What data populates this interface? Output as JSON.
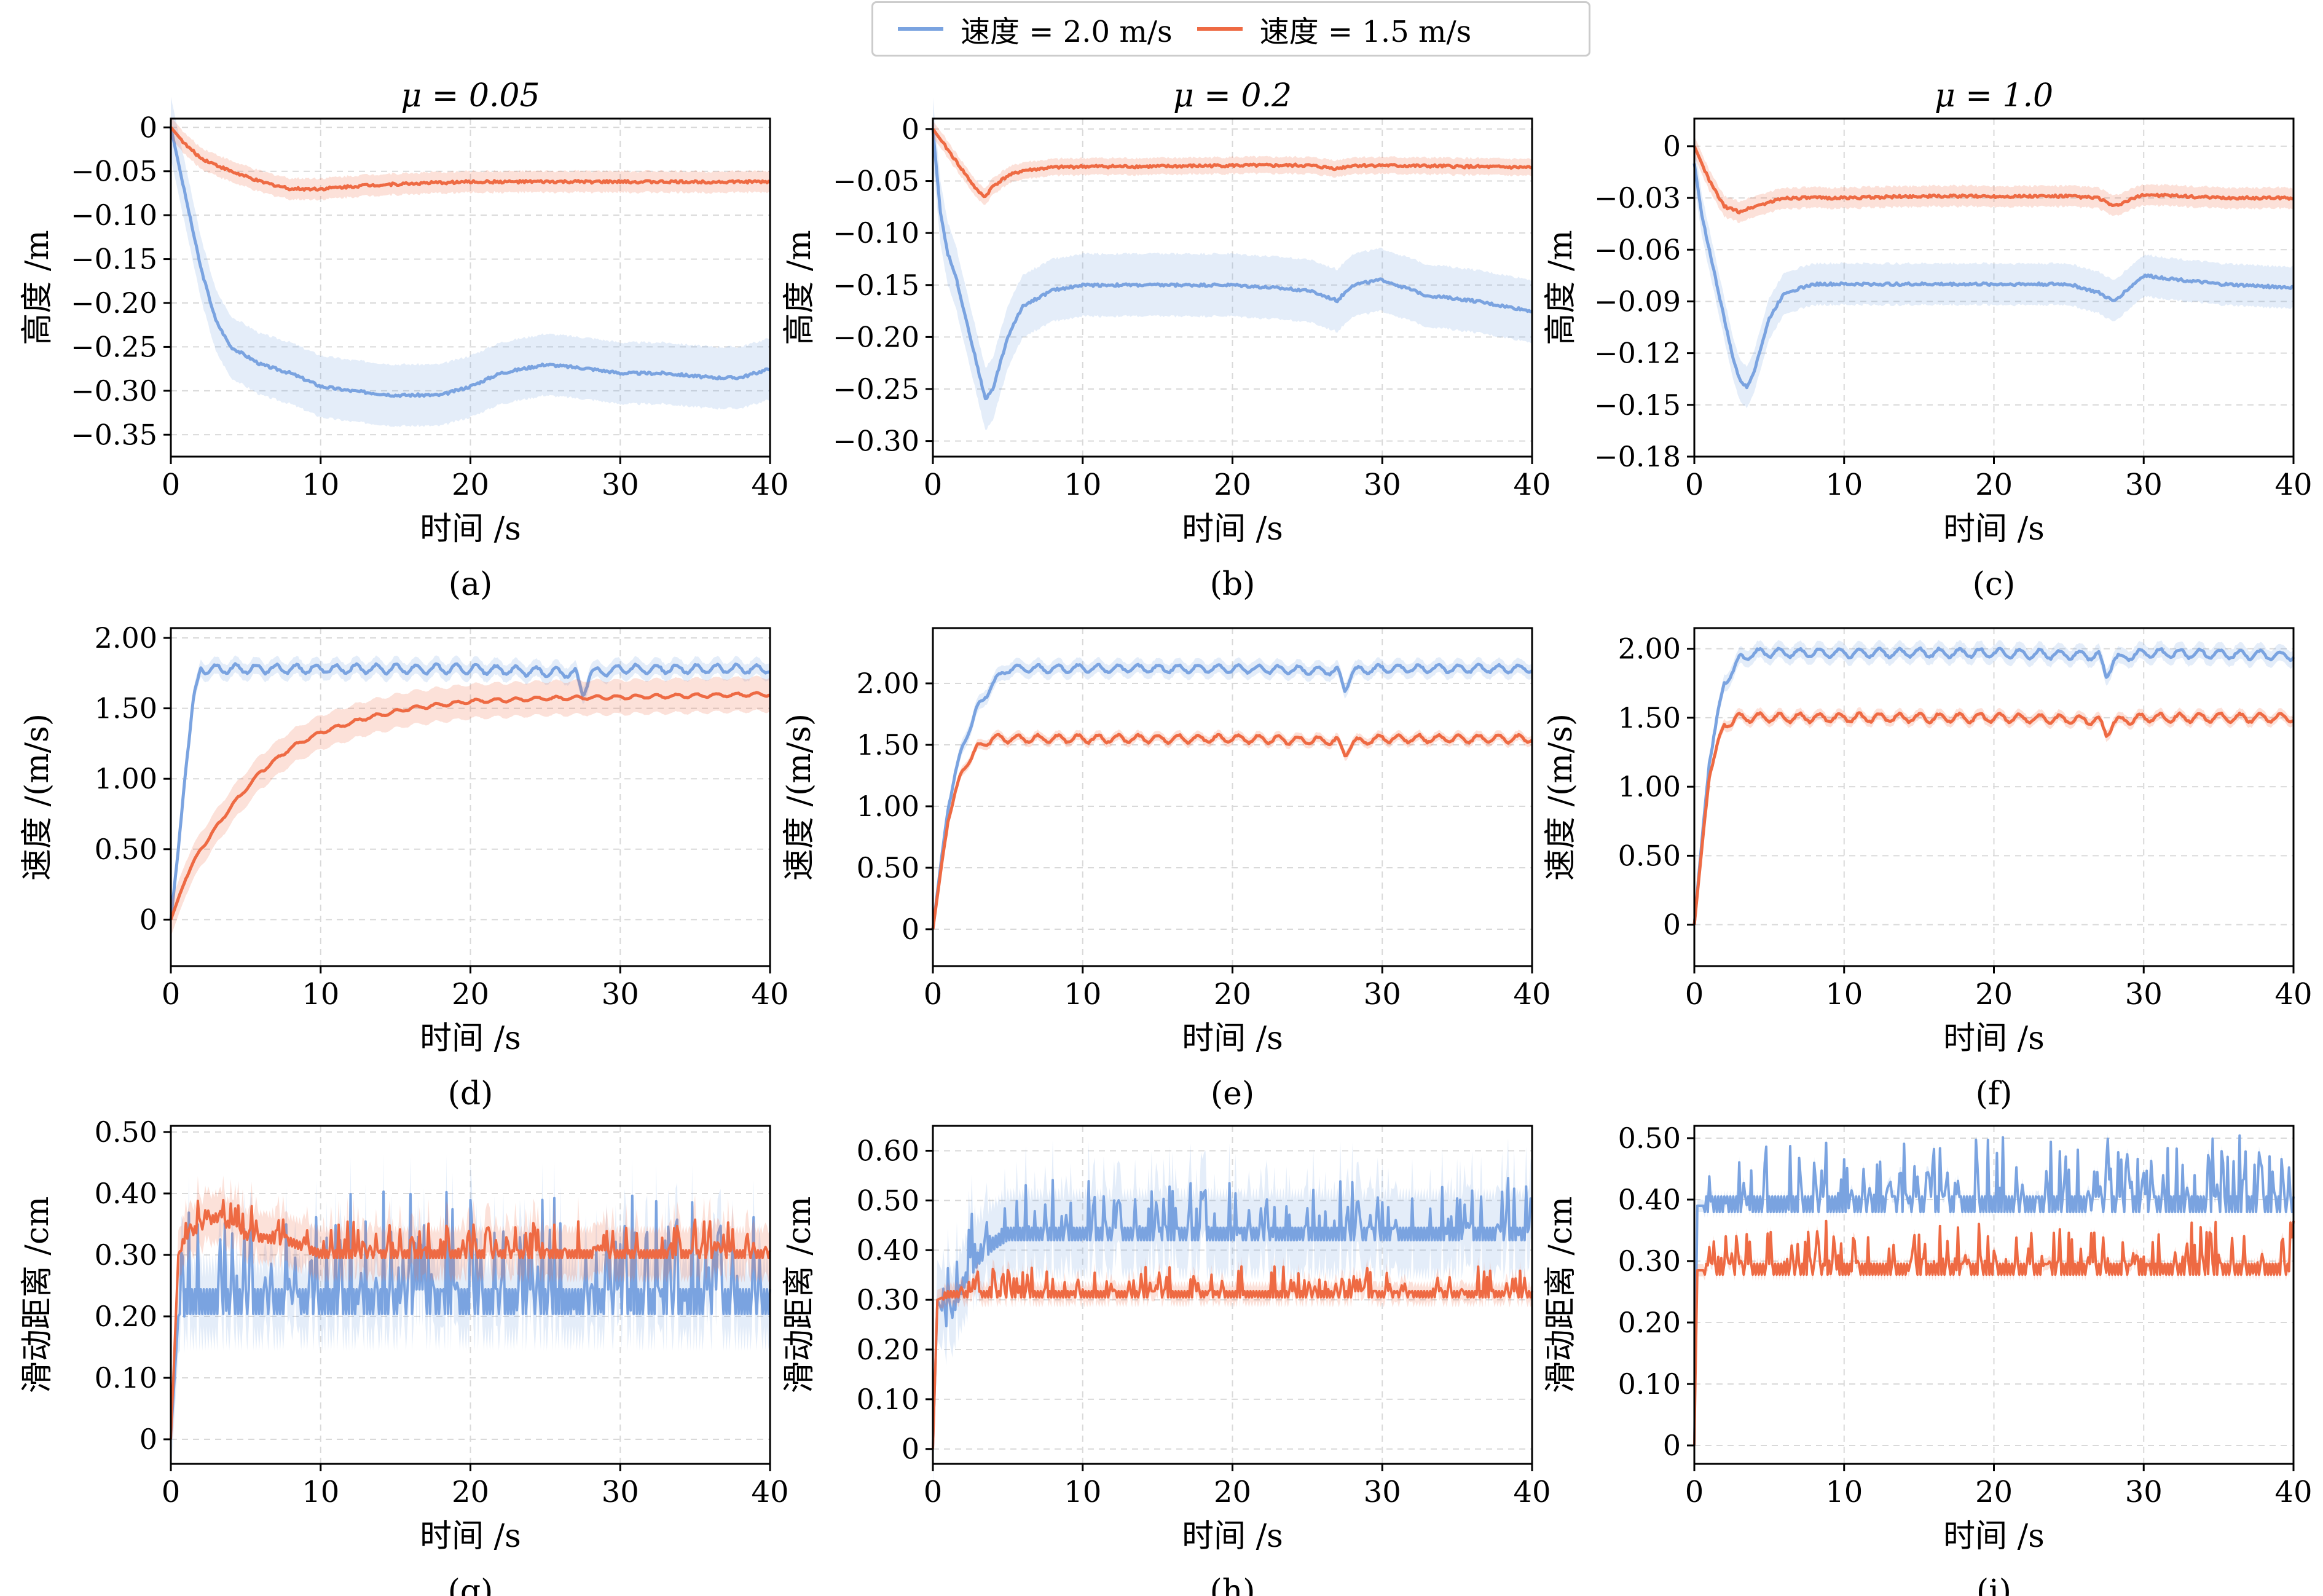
{
  "legend": [
    {
      "label": "速度 = 2.0 m/s",
      "color": "#7aa3e0"
    },
    {
      "label": "速度 = 1.5 m/s",
      "color": "#ee6a43"
    }
  ],
  "colors": {
    "blue": "#7aa3e0",
    "blue_band": "#dce7f8",
    "orange": "#ee6a43",
    "orange_band": "#fbd6c8",
    "grid": "#d9d9d9"
  },
  "chart_data": [
    {
      "id": "a",
      "type": "line",
      "title": "μ = 0.05",
      "caption": "(a)",
      "xlabel": "时间 /s",
      "ylabel": "高度 /m",
      "xlim": [
        0,
        40
      ],
      "ylim": [
        -0.375,
        0.01
      ],
      "xticks": [
        0,
        10,
        20,
        30,
        40
      ],
      "xtick_labels": [
        "0",
        "10",
        "20",
        "30",
        "40"
      ],
      "yticks": [
        0,
        -0.05,
        -0.1,
        -0.15,
        -0.2,
        -0.25,
        -0.3,
        -0.35
      ],
      "ytick_labels": [
        "0",
        "−0.05",
        "−0.10",
        "−0.15",
        "−0.20",
        "−0.25",
        "−0.30",
        "−0.35"
      ],
      "series": [
        {
          "name": "速度 = 2.0 m/s",
          "color": "#7aa3e0",
          "x": [
            0,
            1,
            2,
            3,
            4,
            6,
            8,
            10,
            12,
            15,
            18,
            20,
            22,
            25,
            28,
            30,
            33,
            36,
            38,
            40
          ],
          "y": [
            0,
            -0.08,
            -0.16,
            -0.22,
            -0.25,
            -0.27,
            -0.28,
            -0.295,
            -0.3,
            -0.305,
            -0.305,
            -0.295,
            -0.28,
            -0.27,
            -0.275,
            -0.28,
            -0.28,
            -0.285,
            -0.285,
            -0.275
          ],
          "band": 0.035
        },
        {
          "name": "速度 = 1.5 m/s",
          "color": "#ee6a43",
          "x": [
            0,
            1,
            2,
            4,
            6,
            8,
            10,
            13,
            16,
            20,
            25,
            30,
            35,
            40
          ],
          "y": [
            0,
            -0.02,
            -0.035,
            -0.05,
            -0.062,
            -0.07,
            -0.07,
            -0.066,
            -0.064,
            -0.062,
            -0.062,
            -0.062,
            -0.062,
            -0.062
          ],
          "band": 0.012
        }
      ]
    },
    {
      "id": "b",
      "type": "line",
      "title": "μ = 0.2",
      "caption": "(b)",
      "xlabel": "时间 /s",
      "ylabel": "高度 /m",
      "xlim": [
        0,
        40
      ],
      "ylim": [
        -0.315,
        0.01
      ],
      "xticks": [
        0,
        10,
        20,
        30,
        40
      ],
      "xtick_labels": [
        "0",
        "10",
        "20",
        "30",
        "40"
      ],
      "yticks": [
        0,
        -0.05,
        -0.1,
        -0.15,
        -0.2,
        -0.25,
        -0.3
      ],
      "ytick_labels": [
        "0",
        "−0.05",
        "−0.10",
        "−0.15",
        "−0.20",
        "−0.25",
        "−0.30"
      ],
      "series": [
        {
          "name": "速度 = 2.0 m/s",
          "color": "#7aa3e0",
          "x": [
            0,
            0.5,
            1,
            1.5,
            2,
            2.5,
            3,
            3.5,
            4,
            5,
            6,
            8,
            10,
            15,
            20,
            25,
            27,
            28,
            30,
            33,
            36,
            40
          ],
          "y": [
            0,
            -0.08,
            -0.12,
            -0.14,
            -0.17,
            -0.2,
            -0.23,
            -0.26,
            -0.25,
            -0.2,
            -0.17,
            -0.155,
            -0.15,
            -0.15,
            -0.15,
            -0.155,
            -0.165,
            -0.15,
            -0.145,
            -0.16,
            -0.165,
            -0.175
          ],
          "band": 0.03
        },
        {
          "name": "速度 = 1.5 m/s",
          "color": "#ee6a43",
          "x": [
            0,
            1,
            2,
            3,
            3.5,
            4,
            5,
            6,
            8,
            10,
            15,
            20,
            25,
            27,
            28,
            30,
            35,
            40
          ],
          "y": [
            0,
            -0.02,
            -0.04,
            -0.06,
            -0.065,
            -0.055,
            -0.045,
            -0.04,
            -0.037,
            -0.036,
            -0.036,
            -0.035,
            -0.035,
            -0.038,
            -0.035,
            -0.035,
            -0.036,
            -0.037
          ],
          "band": 0.008
        }
      ]
    },
    {
      "id": "c",
      "type": "line",
      "title": "μ = 1.0",
      "caption": "(c)",
      "xlabel": "时间 /s",
      "ylabel": "高度 /m",
      "xlim": [
        0,
        40
      ],
      "ylim": [
        -0.18,
        0.016
      ],
      "xticks": [
        0,
        10,
        20,
        30,
        40
      ],
      "xtick_labels": [
        "0",
        "10",
        "20",
        "30",
        "40"
      ],
      "yticks": [
        0,
        -0.03,
        -0.06,
        -0.09,
        -0.12,
        -0.15,
        -0.18
      ],
      "ytick_labels": [
        "0",
        "−0.03",
        "−0.06",
        "−0.09",
        "−0.12",
        "−0.15",
        "−0.18"
      ],
      "series": [
        {
          "name": "速度 = 2.0 m/s",
          "color": "#7aa3e0",
          "x": [
            0,
            0.5,
            1,
            1.5,
            2,
            2.5,
            3,
            3.5,
            4,
            5,
            6,
            8,
            10,
            15,
            20,
            25,
            27,
            28,
            30,
            35,
            40
          ],
          "y": [
            -0.01,
            -0.04,
            -0.06,
            -0.08,
            -0.1,
            -0.12,
            -0.135,
            -0.14,
            -0.13,
            -0.1,
            -0.085,
            -0.08,
            -0.08,
            -0.08,
            -0.08,
            -0.08,
            -0.085,
            -0.09,
            -0.075,
            -0.08,
            -0.082
          ],
          "band": 0.012
        },
        {
          "name": "速度 = 1.5 m/s",
          "color": "#ee6a43",
          "x": [
            0,
            1,
            2,
            3,
            4,
            6,
            8,
            10,
            15,
            20,
            25,
            27,
            28,
            30,
            35,
            40
          ],
          "y": [
            0,
            -0.02,
            -0.035,
            -0.038,
            -0.035,
            -0.03,
            -0.03,
            -0.03,
            -0.029,
            -0.029,
            -0.029,
            -0.03,
            -0.035,
            -0.028,
            -0.03,
            -0.03
          ],
          "band": 0.006
        }
      ]
    },
    {
      "id": "d",
      "type": "line",
      "caption": "(d)",
      "xlabel": "时间 /s",
      "ylabel": "速度 /(m/s)",
      "xlim": [
        0,
        40
      ],
      "ylim": [
        -0.33,
        2.07
      ],
      "xticks": [
        0,
        10,
        20,
        30,
        40
      ],
      "xtick_labels": [
        "0",
        "10",
        "20",
        "30",
        "40"
      ],
      "yticks": [
        0,
        0.5,
        1.0,
        1.5,
        2.0
      ],
      "ytick_labels": [
        "0",
        "0.50",
        "1.00",
        "1.50",
        "2.00"
      ],
      "series": [
        {
          "name": "速度 = 2.0 m/s",
          "color": "#7aa3e0",
          "x": [
            0,
            0.5,
            1,
            1.5,
            2,
            3,
            10,
            20,
            27,
            27.5,
            28,
            30,
            40
          ],
          "y": [
            0,
            0.5,
            1.1,
            1.55,
            1.78,
            1.78,
            1.78,
            1.78,
            1.75,
            1.6,
            1.75,
            1.78,
            1.78
          ],
          "band": 0.06,
          "osc": 0.05
        },
        {
          "name": "速度 = 1.5 m/s",
          "color": "#ee6a43",
          "x": [
            0,
            1,
            2,
            3,
            4,
            6,
            8,
            10,
            13,
            16,
            20,
            25,
            30,
            35,
            40
          ],
          "y": [
            0,
            0.3,
            0.5,
            0.65,
            0.8,
            1.05,
            1.22,
            1.33,
            1.43,
            1.5,
            1.55,
            1.57,
            1.58,
            1.59,
            1.6
          ],
          "band": 0.12,
          "osc": 0.02
        }
      ]
    },
    {
      "id": "e",
      "type": "line",
      "caption": "(e)",
      "xlabel": "时间 /s",
      "ylabel": "速度 /(m/s)",
      "xlim": [
        0,
        40
      ],
      "ylim": [
        -0.3,
        2.45
      ],
      "xticks": [
        0,
        10,
        20,
        30,
        40
      ],
      "xtick_labels": [
        "0",
        "10",
        "20",
        "30",
        "40"
      ],
      "yticks": [
        0,
        0.5,
        1.0,
        1.5,
        2.0
      ],
      "ytick_labels": [
        "0",
        "0.50",
        "1.00",
        "1.50",
        "2.00"
      ],
      "series": [
        {
          "name": "速度 = 2.0 m/s",
          "color": "#7aa3e0",
          "x": [
            0,
            1,
            2,
            3,
            4,
            5,
            10,
            20,
            27,
            27.5,
            28,
            30,
            40
          ],
          "y": [
            0,
            1.0,
            1.5,
            1.8,
            2.0,
            2.12,
            2.12,
            2.12,
            2.1,
            1.95,
            2.1,
            2.12,
            2.12
          ],
          "band": 0.06,
          "osc": 0.05
        },
        {
          "name": "速度 = 1.5 m/s",
          "color": "#ee6a43",
          "x": [
            0,
            1,
            2,
            3,
            4,
            10,
            20,
            27,
            27.5,
            28,
            30,
            40
          ],
          "y": [
            0,
            0.9,
            1.3,
            1.48,
            1.55,
            1.55,
            1.55,
            1.53,
            1.42,
            1.52,
            1.55,
            1.55
          ],
          "band": 0.04,
          "osc": 0.05
        }
      ]
    },
    {
      "id": "f",
      "type": "line",
      "caption": "(f)",
      "xlabel": "时间 /s",
      "ylabel": "速度 /(m/s)",
      "xlim": [
        0,
        40
      ],
      "ylim": [
        -0.3,
        2.15
      ],
      "xticks": [
        0,
        10,
        20,
        30,
        40
      ],
      "xtick_labels": [
        "0",
        "10",
        "20",
        "30",
        "40"
      ],
      "yticks": [
        0,
        0.5,
        1.0,
        1.5,
        2.0
      ],
      "ytick_labels": [
        "0",
        "0.50",
        "1.00",
        "1.50",
        "2.00"
      ],
      "series": [
        {
          "name": "速度 = 2.0 m/s",
          "color": "#7aa3e0",
          "x": [
            0,
            1,
            2,
            3,
            4,
            10,
            20,
            27,
            27.5,
            28,
            30,
            40
          ],
          "y": [
            0,
            1.2,
            1.75,
            1.92,
            1.97,
            1.97,
            1.97,
            1.95,
            1.8,
            1.92,
            1.97,
            1.95
          ],
          "band": 0.06,
          "osc": 0.05
        },
        {
          "name": "速度 = 1.5 m/s",
          "color": "#ee6a43",
          "x": [
            0,
            1,
            2,
            3,
            10,
            20,
            27,
            27.5,
            28,
            30,
            40
          ],
          "y": [
            0,
            1.1,
            1.45,
            1.5,
            1.5,
            1.5,
            1.48,
            1.38,
            1.47,
            1.5,
            1.5
          ],
          "band": 0.04,
          "osc": 0.05
        }
      ]
    },
    {
      "id": "g",
      "type": "line",
      "caption": "(g)",
      "xlabel": "时间 /s",
      "ylabel": "滑动距离 /cm",
      "xlim": [
        0,
        40
      ],
      "ylim": [
        -0.04,
        0.51
      ],
      "xticks": [
        0,
        10,
        20,
        30,
        40
      ],
      "xtick_labels": [
        "0",
        "10",
        "20",
        "30",
        "40"
      ],
      "yticks": [
        0,
        0.1,
        0.2,
        0.3,
        0.4,
        0.5
      ],
      "ytick_labels": [
        "0",
        "0.10",
        "0.20",
        "0.30",
        "0.40",
        "0.50"
      ],
      "series": [
        {
          "name": "速度 = 2.0 m/s",
          "color": "#7aa3e0",
          "x": [
            0,
            0.5,
            1,
            40
          ],
          "y": [
            0,
            0.2,
            0.22,
            0.22
          ],
          "band": 0.06,
          "osc": 0.08
        },
        {
          "name": "速度 = 1.5 m/s",
          "color": "#ee6a43",
          "x": [
            0,
            0.5,
            1,
            3,
            5,
            8,
            10,
            15,
            40
          ],
          "y": [
            0,
            0.3,
            0.33,
            0.36,
            0.33,
            0.32,
            0.3,
            0.3,
            0.3
          ],
          "band": 0.04,
          "osc": 0.025
        }
      ]
    },
    {
      "id": "h",
      "type": "line",
      "caption": "(h)",
      "xlabel": "时间 /s",
      "ylabel": "滑动距离 /cm",
      "xlim": [
        0,
        40
      ],
      "ylim": [
        -0.03,
        0.65
      ],
      "xticks": [
        0,
        10,
        20,
        30,
        40
      ],
      "xtick_labels": [
        "0",
        "10",
        "20",
        "30",
        "40"
      ],
      "yticks": [
        0,
        0.1,
        0.2,
        0.3,
        0.4,
        0.5,
        0.6
      ],
      "ytick_labels": [
        "0",
        "0.10",
        "0.20",
        "0.30",
        "0.40",
        "0.50",
        "0.60"
      ],
      "series": [
        {
          "name": "速度 = 2.0 m/s",
          "color": "#7aa3e0",
          "x": [
            0,
            0.3,
            1,
            2,
            3,
            4,
            5,
            40
          ],
          "y": [
            0,
            0.3,
            0.25,
            0.33,
            0.38,
            0.41,
            0.43,
            0.43
          ],
          "band": 0.08,
          "osc": 0.05
        },
        {
          "name": "速度 = 1.5 m/s",
          "color": "#ee6a43",
          "x": [
            0,
            0.3,
            1,
            40
          ],
          "y": [
            0,
            0.3,
            0.31,
            0.31
          ],
          "band": 0.02,
          "osc": 0.025
        }
      ]
    },
    {
      "id": "i",
      "type": "line",
      "caption": "(i)",
      "xlabel": "时间 /s",
      "ylabel": "滑动距离 /cm",
      "xlim": [
        0,
        40
      ],
      "ylim": [
        -0.03,
        0.52
      ],
      "xticks": [
        0,
        10,
        20,
        30,
        40
      ],
      "xtick_labels": [
        "0",
        "10",
        "20",
        "30",
        "40"
      ],
      "yticks": [
        0,
        0.1,
        0.2,
        0.3,
        0.4,
        0.5
      ],
      "ytick_labels": [
        "0",
        "0.10",
        "0.20",
        "0.30",
        "0.40",
        "0.50"
      ],
      "series": [
        {
          "name": "速度 = 2.0 m/s",
          "color": "#7aa3e0",
          "x": [
            0,
            0.2,
            40
          ],
          "y": [
            0,
            0.39,
            0.39
          ],
          "band": 0.01,
          "osc": 0.05
        },
        {
          "name": "速度 = 1.5 m/s",
          "color": "#ee6a43",
          "x": [
            0,
            0.2,
            40
          ],
          "y": [
            0,
            0.285,
            0.285
          ],
          "band": 0.01,
          "osc": 0.035
        }
      ]
    }
  ]
}
